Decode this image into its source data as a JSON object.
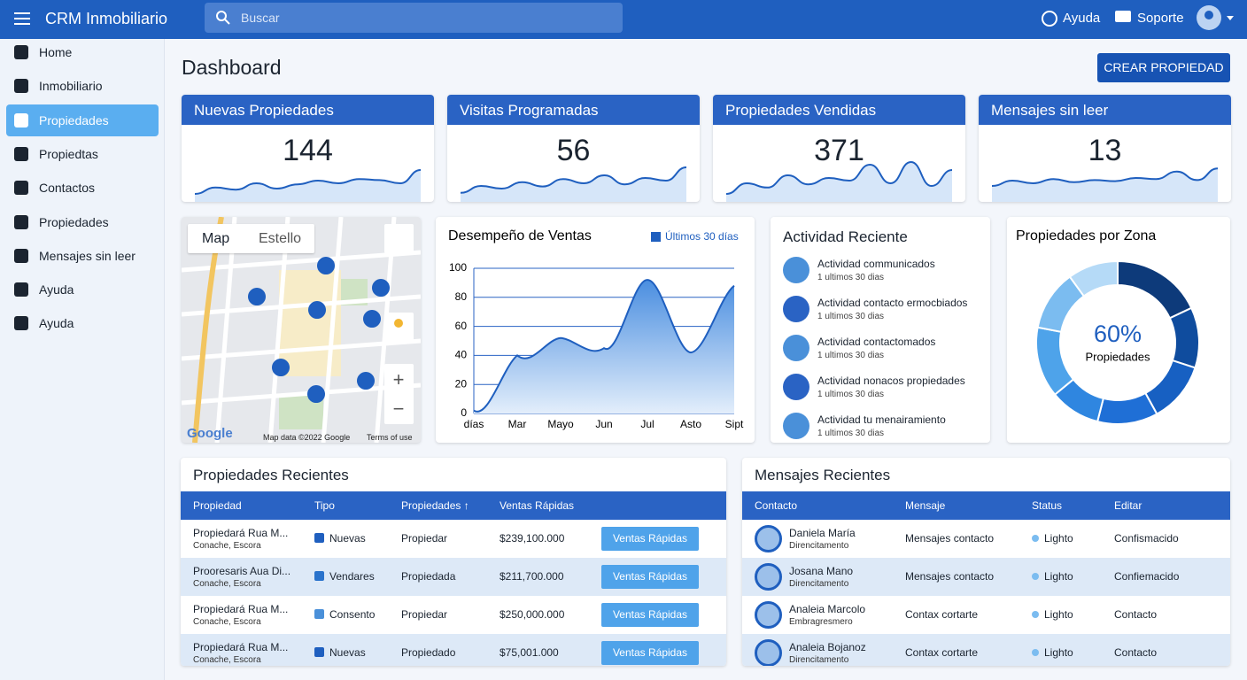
{
  "header": {
    "title": "CRM Inmobiliario",
    "search": "Buscar",
    "links": [
      "Ayuda",
      "Soporte"
    ]
  },
  "sidebar": {
    "items": [
      "Home",
      "Inmobiliario",
      "Propiedades",
      "Propiedtas",
      "Contactos",
      "Propiedades",
      "Mensajes sin leer",
      "Ayuda",
      "Ayuda"
    ],
    "active": 2
  },
  "page": {
    "title": "Dashboard",
    "button": "CREAR PROPIEDAD"
  },
  "kpis": {
    "trend_ylim": [
      0,
      100
    ],
    "cards": [
      {
        "title": "Nuevas Propiedades",
        "value": 144,
        "trend": [
          10,
          22,
          18,
          30,
          20,
          28,
          35,
          30,
          38,
          36,
          30,
          55
        ]
      },
      {
        "title": "Visitas Programadas",
        "value": 56,
        "trend": [
          12,
          25,
          20,
          32,
          24,
          38,
          30,
          45,
          28,
          40,
          35,
          60
        ]
      },
      {
        "title": "Propiedades Vendidas",
        "value": 371,
        "trend": [
          10,
          30,
          22,
          45,
          28,
          40,
          35,
          65,
          30,
          70,
          25,
          55
        ]
      },
      {
        "title": "Mensajes sin leer",
        "value": 13,
        "trend": [
          25,
          35,
          30,
          38,
          32,
          36,
          34,
          40,
          38,
          52,
          36,
          58
        ]
      }
    ]
  },
  "map": {
    "tabs": [
      "Map",
      "Estello"
    ],
    "logo": "Google",
    "attribution": "Map data ©2022 Google",
    "terms": "Terms of use"
  },
  "sales_chart": {
    "type": "line",
    "title": "Desempeño de Ventas",
    "series": [
      {
        "name": "Últimos 30 días",
        "color": "#1f5fbf",
        "values": [
          2,
          40,
          52,
          45,
          92,
          42,
          88
        ]
      }
    ],
    "categories": [
      "días",
      "Mar",
      "Mayo",
      "Jun",
      "Jul",
      "Asto",
      "Sipt"
    ],
    "ylim": [
      0,
      100
    ],
    "yticks": [
      0,
      20,
      40,
      60,
      80,
      100
    ],
    "grid": true
  },
  "activity": {
    "title": "Actividad Reciente",
    "items": [
      {
        "text": "Actividad communicados",
        "sub": "1 ultimos 30 dias"
      },
      {
        "text": "Actividad contacto ermocbiados",
        "sub": "1 ultimos 30 dias"
      },
      {
        "text": "Actividad contactomados",
        "sub": "1 ultimos 30 dias"
      },
      {
        "text": "Actividad nonacos propiedades",
        "sub": "1 ultimos 30 dias"
      },
      {
        "text": "Actividad tu menairamiento",
        "sub": "1 ultimos 30 dias"
      }
    ]
  },
  "zone_chart": {
    "type": "donut",
    "title": "Propiedades por Zona",
    "center_value": 60,
    "center_label": "60%",
    "center_text": "Propiedades",
    "values": [
      18,
      12,
      12,
      12,
      10,
      14,
      12,
      10
    ],
    "colors": [
      "#0d3a7a",
      "#0f4c9e",
      "#1760c2",
      "#1f6fd6",
      "#2f86e0",
      "#4ea3ea",
      "#7bbcf0",
      "#b5daf7"
    ]
  },
  "properties": {
    "title": "Propiedades Recientes",
    "columns": [
      "Propiedad",
      "Tipo",
      "Propiedades ↑",
      "Ventas Rápidas"
    ],
    "rows": [
      {
        "name": "Propiedará Rua M...",
        "sub": "Conache, Escora",
        "tipo": "Nuevas",
        "color": "#1f5fbf",
        "prop": "Propiedar",
        "price": "$239,100.000",
        "action": "Ventas Rápidas"
      },
      {
        "name": "Prooresaris Aua Di...",
        "sub": "Conache, Escora",
        "tipo": "Vendares",
        "color": "#2a73cc",
        "prop": "Propiedada",
        "price": "$211,700.000",
        "action": "Ventas Rápidas"
      },
      {
        "name": "Propiedará Rua M...",
        "sub": "Conache, Escora",
        "tipo": "Consento",
        "color": "#4a90d9",
        "prop": "Propiedar",
        "price": "$250,000.000",
        "action": "Ventas Rápidas"
      },
      {
        "name": "Propiedará Rua M...",
        "sub": "Conache, Escora",
        "tipo": "Nuevas",
        "color": "#1f5fbf",
        "prop": "Propiedado",
        "price": "$75,001.000",
        "action": "Ventas Rápidas"
      }
    ]
  },
  "messages": {
    "title": "Mensajes Recientes",
    "columns": [
      "Contacto",
      "Mensaje",
      "Status",
      "Editar"
    ],
    "rows": [
      {
        "name": "Daniela María",
        "sub": "Direncitamento",
        "msg": "Mensajes contacto",
        "status": "Lighto",
        "edit": "Confismacido"
      },
      {
        "name": "Josana Mano",
        "sub": "Direncitamento",
        "msg": "Mensajes contacto",
        "status": "Lighto",
        "edit": "Confiemacido"
      },
      {
        "name": "Analeia Marcolo",
        "sub": "Embragresmero",
        "msg": "Contax cortarte",
        "status": "Lighto",
        "edit": "Contacto"
      },
      {
        "name": "Analeia Bojanoz",
        "sub": "Direncitamento",
        "msg": "Contax cortarte",
        "status": "Lighto",
        "edit": "Contacto"
      }
    ]
  }
}
